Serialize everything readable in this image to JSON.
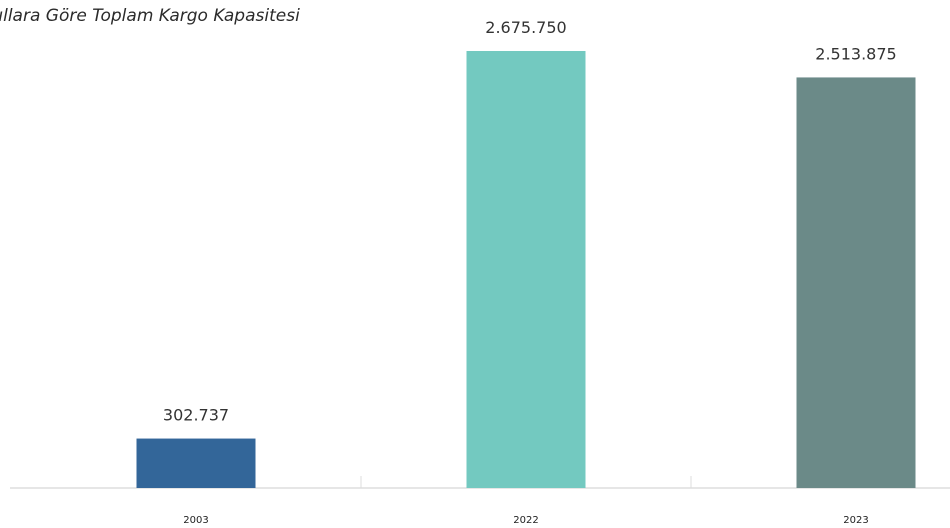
{
  "chart_data": {
    "type": "bar",
    "title": "Yıllara Göre Toplam Kargo Kapasitesi",
    "categories": [
      "2003",
      "2022",
      "2023"
    ],
    "values": [
      302737,
      2675750,
      2513875
    ],
    "value_labels": [
      "302.737",
      "2.675.750",
      "2.513.875"
    ],
    "colors": [
      "#336699",
      "#73c9c0",
      "#6b8a88"
    ],
    "ylim": [
      0,
      2988000
    ],
    "grid": false,
    "legend": "none",
    "xlabel": "",
    "ylabel": ""
  }
}
